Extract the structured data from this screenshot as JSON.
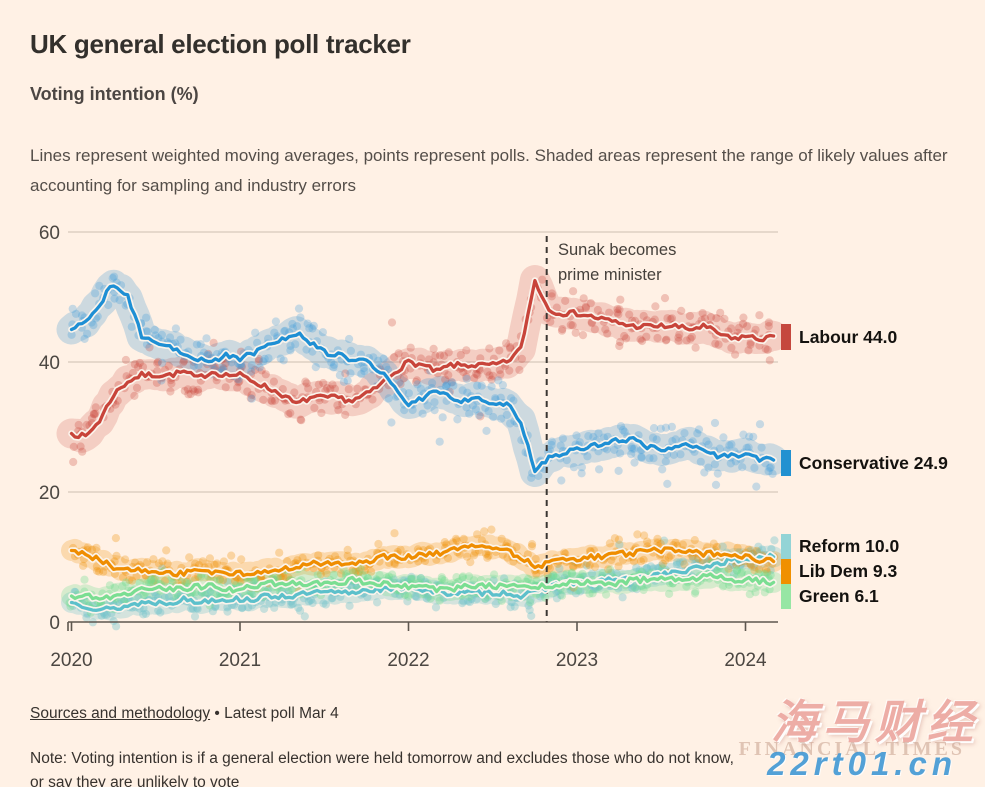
{
  "header": {
    "title": "UK general election poll tracker",
    "subtitle": "Voting intention (%)",
    "description": "Lines represent weighted moving averages, points represent polls. Shaded areas represent the range of likely values after accounting for sampling and industry errors"
  },
  "chart_data": {
    "type": "line",
    "title": "UK general election poll tracker",
    "subtitle": "Voting intention (%)",
    "xlabel": "",
    "ylabel": "Voting intention (%)",
    "ylim": [
      0,
      60
    ],
    "y_ticks": [
      "60",
      "40",
      "20",
      "0"
    ],
    "y_tick_values": [
      60,
      40,
      20,
      0
    ],
    "x_ticks": [
      "2020",
      "2021",
      "2022",
      "2023",
      "2024"
    ],
    "x_start_month": "2020-01",
    "x_end_month": "2024-03",
    "grid": "horizontal",
    "legend_position": "right",
    "annotation": {
      "line1": "Sunak becomes",
      "line2": "prime minister",
      "x_year": 2022.82,
      "event_line_style": "dashed"
    },
    "series": [
      {
        "name": "Labour",
        "value": 44.0,
        "legend": "Labour 44.0",
        "color": "#c8443a",
        "swatch": "#c5483e",
        "band": "rgba(201,69,59,0.20)",
        "dots": "rgba(201,69,59,0.28)",
        "spread": 2.4,
        "band_width": 30,
        "monthly": [
          29,
          28.5,
          31,
          35,
          37,
          38,
          38,
          38,
          38.5,
          37.5,
          38.5,
          38,
          38,
          37,
          36,
          35,
          33.5,
          34.5,
          34.5,
          34.5,
          34,
          35,
          36.5,
          38.5,
          40,
          39.5,
          38.5,
          39.5,
          39.5,
          39.5,
          39.5,
          40,
          42,
          52.5,
          48,
          47.5,
          47.5,
          47,
          46.5,
          46,
          45.5,
          45.5,
          45.5,
          45.5,
          45,
          45.5,
          44.5,
          43.5,
          44,
          43.5,
          44
        ]
      },
      {
        "name": "Conservative",
        "value": 24.9,
        "legend": "Conservative 24.9",
        "color": "#1e8fd4",
        "swatch": "#2191d1",
        "band": "rgba(60,150,210,0.26)",
        "dots": "rgba(70,160,220,0.30)",
        "spread": 2.4,
        "band_width": 30,
        "monthly": [
          45,
          46,
          49,
          52,
          50,
          44,
          43,
          42.5,
          41.5,
          40.5,
          40,
          41,
          40.5,
          41.5,
          42.5,
          43.5,
          44.5,
          43,
          41.5,
          41,
          40.5,
          40,
          38.5,
          36,
          33.5,
          34.5,
          35.5,
          34.5,
          34,
          34.5,
          33.5,
          33.5,
          31,
          23,
          25.5,
          26,
          26.5,
          27,
          27.5,
          28,
          28,
          27,
          26.5,
          27,
          27.5,
          26.5,
          25.5,
          25.5,
          26,
          25,
          24.9
        ]
      },
      {
        "name": "Reform",
        "value": 10.0,
        "legend": "Reform 10.0",
        "color": "#5cc0cb",
        "swatch": "#93d4d6",
        "band": "rgba(120,200,205,0.32)",
        "dots": "rgba(110,195,202,0.38)",
        "spread": 1.5,
        "band_width": 21,
        "monthly": [
          3,
          2.5,
          2,
          2,
          2.5,
          3,
          3,
          3,
          3.5,
          3,
          3.5,
          3.5,
          3.5,
          3.5,
          4,
          4,
          4,
          4.5,
          4.5,
          4.5,
          4.5,
          5,
          5,
          5,
          5.5,
          5,
          4.5,
          4.5,
          4.5,
          4.5,
          4.5,
          4.5,
          4,
          4.5,
          5.5,
          6,
          6,
          6,
          6.5,
          6.5,
          6.5,
          7,
          7.5,
          7.5,
          8,
          8.5,
          9,
          9.5,
          9.5,
          10,
          10
        ]
      },
      {
        "name": "Lib Dem",
        "value": 9.3,
        "legend": "Lib Dem 9.3",
        "color": "#ef8d00",
        "swatch": "#f09000",
        "band": "rgba(239,141,0,0.24)",
        "dots": "rgba(239,141,0,0.30)",
        "spread": 1.6,
        "band_width": 21,
        "monthly": [
          11,
          10.5,
          9.5,
          8.5,
          8,
          8,
          7.5,
          7.5,
          7.5,
          8,
          7.5,
          7.5,
          7.5,
          7.5,
          8,
          8,
          8.5,
          9,
          9,
          9,
          9,
          9,
          10,
          10,
          10,
          10.5,
          10.5,
          11,
          11.5,
          12,
          11.5,
          11,
          10,
          8.5,
          9,
          9.5,
          9.5,
          10,
          10,
          10.5,
          10.5,
          11,
          11,
          11,
          11,
          10.5,
          10.5,
          10.5,
          10,
          9.5,
          9.3
        ]
      },
      {
        "name": "Green",
        "value": 6.1,
        "legend": "Green 6.1",
        "color": "#7ade92",
        "swatch": "#97e6a4",
        "band": "rgba(110,220,145,0.28)",
        "dots": "rgba(110,220,145,0.34)",
        "spread": 1.4,
        "band_width": 21,
        "monthly": [
          4,
          4,
          3.5,
          4,
          4.5,
          5,
          5.5,
          5,
          5,
          5.5,
          5.5,
          5,
          5,
          5.5,
          6,
          6,
          6,
          6,
          6,
          6,
          6.5,
          6,
          6,
          5.5,
          5.5,
          5.5,
          5,
          5,
          5.5,
          5.5,
          5.5,
          5.5,
          5.5,
          5.5,
          5.5,
          6,
          6,
          6,
          6,
          6,
          6.5,
          6.5,
          6.5,
          6.5,
          6.5,
          7,
          7,
          6.5,
          6.5,
          6.3,
          6.1
        ]
      }
    ]
  },
  "footer": {
    "sources_label": "Sources and methodology",
    "bullet": "•",
    "latest_poll": "Latest poll Mar 4",
    "note": "Note: Voting intention is if a general election were held tomorrow and excludes those who do not know, or say they are unlikely to vote"
  },
  "watermark": {
    "cn": "海马财经",
    "ft": "FINANCIAL TIMES",
    "url": "22rt01.cn"
  },
  "colors": {
    "background": "#fff1e5",
    "gridline": "#d7c9bc",
    "axis": "#5e574f",
    "annotation_line": "#3b3733",
    "text_primary": "#33302c"
  }
}
